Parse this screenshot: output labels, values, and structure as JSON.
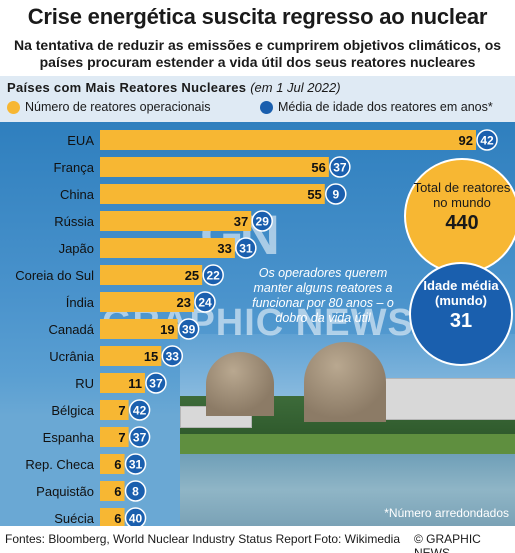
{
  "title": "Crise energética suscita regresso ao nuclear",
  "subtitle": "Na tentativa de reduzir as emissões e cumprirem objetivos climáticos, os países procuram estender a vida útil dos seus reatores nucleares",
  "section": {
    "title": "Países com Mais Reatores Nucleares",
    "date": "(em 1 Jul 2022)"
  },
  "legend": {
    "reactors": "Número de reatores operacionais",
    "age": "Média de idade dos reatores em anos*"
  },
  "totals": {
    "total_label": "Total de reatores no mundo",
    "total_value": "440",
    "age_label": "Idade média (mundo)",
    "age_value": "31"
  },
  "note": "Os operadores querem manter alguns reatores a funcionar por 80 anos – o dobro da vida útil",
  "footnote": "*Número arredondados",
  "footer": {
    "sources": "Fontes: Bloomberg, World Nuclear Industry Status Report",
    "photo": "Foto: Wikimedia",
    "copyright": "© GRAPHIC NEWS"
  },
  "colors": {
    "bar": "#f7b733",
    "age_circle": "#1a5fae",
    "panel_top": "#dfeaf4",
    "panel_blue": "#2f7fbe"
  },
  "chart_data": {
    "type": "bar",
    "orientation": "horizontal",
    "title": "Países com Mais Reatores Nucleares",
    "categories": [
      "EUA",
      "França",
      "China",
      "Rússia",
      "Japão",
      "Coreia do Sul",
      "Índia",
      "Canadá",
      "Ucrânia",
      "RU",
      "Bélgica",
      "Espanha",
      "Rep. Checa",
      "Paquistão",
      "Suécia"
    ],
    "series": [
      {
        "name": "Número de reatores operacionais",
        "values": [
          92,
          56,
          55,
          37,
          33,
          25,
          23,
          19,
          15,
          11,
          7,
          7,
          6,
          6,
          6
        ]
      },
      {
        "name": "Média de idade dos reatores em anos*",
        "values": [
          42,
          37,
          9,
          29,
          31,
          22,
          24,
          39,
          33,
          37,
          42,
          37,
          31,
          8,
          40
        ]
      }
    ],
    "xlim": [
      0,
      92
    ]
  }
}
